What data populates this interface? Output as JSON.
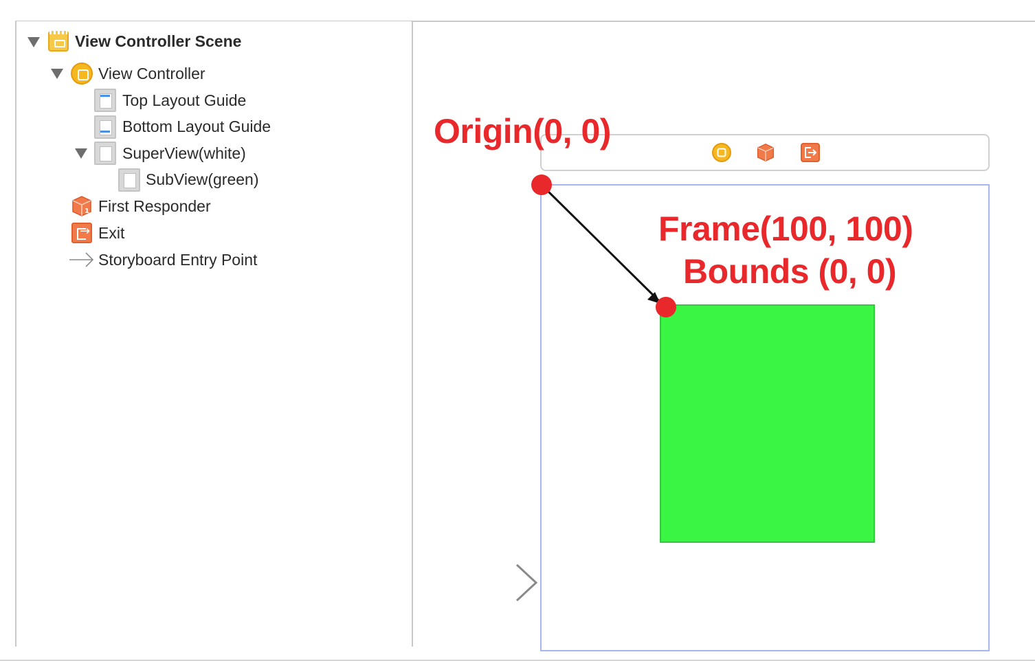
{
  "outline": {
    "items": [
      {
        "label": "View Controller Scene",
        "icon": "scene-icon",
        "expanded": true
      },
      {
        "label": "View Controller",
        "icon": "view-controller-icon",
        "expanded": true
      },
      {
        "label": "Top Layout Guide",
        "icon": "layout-guide-icon"
      },
      {
        "label": "Bottom Layout Guide",
        "icon": "layout-guide-icon"
      },
      {
        "label": "SuperView(white)",
        "icon": "view-icon",
        "expanded": true
      },
      {
        "label": "SubView(green)",
        "icon": "view-icon"
      },
      {
        "label": "First Responder",
        "icon": "first-responder-icon"
      },
      {
        "label": "Exit",
        "icon": "exit-icon"
      },
      {
        "label": "Storyboard Entry Point",
        "icon": "entry-arrow-icon"
      }
    ]
  },
  "canvas": {
    "dock_icons": [
      "view-controller-icon",
      "first-responder-icon",
      "exit-icon"
    ],
    "superview_color": "#ffffff",
    "subview_color": "#3bf545"
  },
  "annotations": {
    "origin": "Origin(0, 0)",
    "frame": "Frame(100, 100)",
    "bounds": "Bounds (0, 0)",
    "color": "#e8282a"
  }
}
